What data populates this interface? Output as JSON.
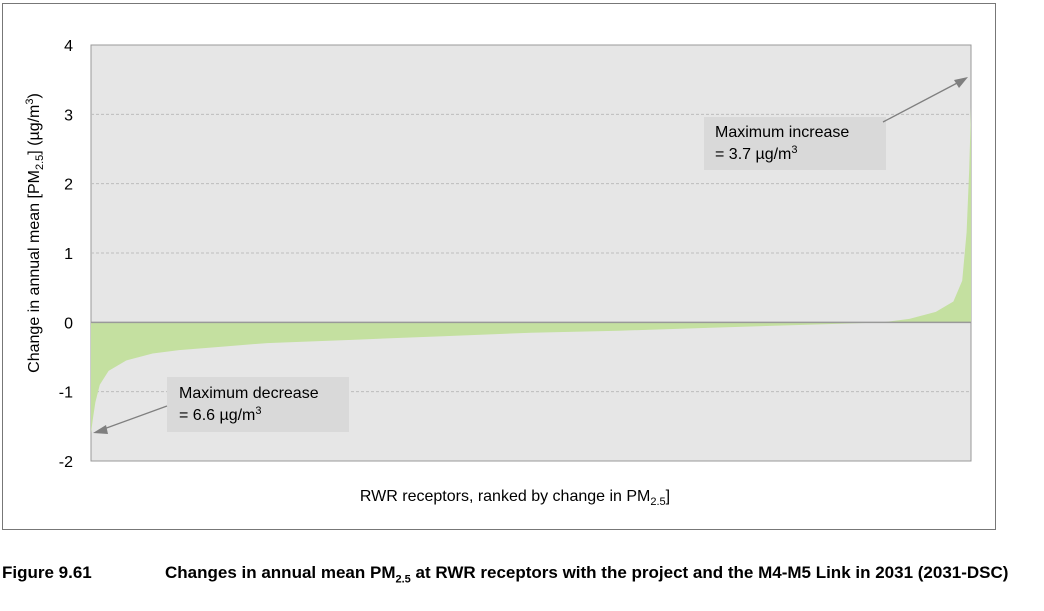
{
  "chart_data": {
    "type": "area",
    "ylabel_parts": [
      "Change in annual mean [PM",
      "2.5",
      "] (µg/m",
      "3",
      ")"
    ],
    "xlabel_parts": [
      "RWR receptors, ranked by change in  PM",
      "2.5",
      "]"
    ],
    "ylim": [
      -2,
      4
    ],
    "yticks": [
      -2,
      -1,
      0,
      1,
      2,
      3,
      4
    ],
    "grid": true,
    "series_color": "#c4e0a0",
    "curve": [
      [
        0.0,
        -1.6
      ],
      [
        0.002,
        -1.4
      ],
      [
        0.005,
        -1.15
      ],
      [
        0.01,
        -0.9
      ],
      [
        0.02,
        -0.7
      ],
      [
        0.04,
        -0.55
      ],
      [
        0.07,
        -0.45
      ],
      [
        0.1,
        -0.4
      ],
      [
        0.15,
        -0.35
      ],
      [
        0.2,
        -0.3
      ],
      [
        0.3,
        -0.25
      ],
      [
        0.4,
        -0.2
      ],
      [
        0.5,
        -0.15
      ],
      [
        0.6,
        -0.12
      ],
      [
        0.7,
        -0.08
      ],
      [
        0.8,
        -0.04
      ],
      [
        0.88,
        -0.01
      ],
      [
        0.9,
        0.0
      ],
      [
        0.93,
        0.05
      ],
      [
        0.96,
        0.15
      ],
      [
        0.98,
        0.3
      ],
      [
        0.99,
        0.6
      ],
      [
        0.995,
        1.3
      ],
      [
        0.998,
        2.2
      ],
      [
        1.0,
        3.1
      ]
    ],
    "annotations": [
      {
        "line1": "Maximum increase",
        "line2_prefix": "= 3.7 µg/m",
        "line2_sup": "3"
      },
      {
        "line1": "Maximum decrease",
        "line2_prefix": "= 6.6 µg/m",
        "line2_sup": "3"
      }
    ]
  },
  "caption": {
    "number": "Figure 9.61",
    "title_parts": [
      "Changes in annual mean PM",
      "2.5",
      " at RWR receptors with the project and the M4-M5 Link in 2031 (2031-DSC)"
    ]
  }
}
